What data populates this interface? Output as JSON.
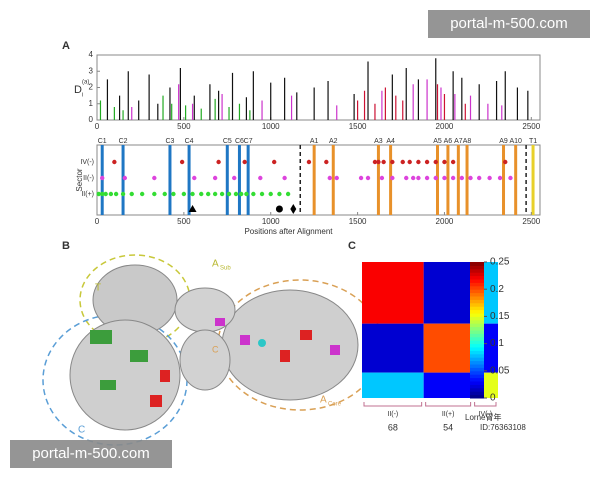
{
  "panel_labels": [
    "A",
    "B",
    "C"
  ],
  "watermarks": [
    "portal-m-500.com",
    "portal-m-500.com"
  ],
  "credit": [
    "Lorne胃年",
    "ID:76363108"
  ],
  "panel_b": {
    "labels": [
      "T",
      "C",
      "C"
    ],
    "a_sub": [
      "A",
      "Sub"
    ],
    "a_core": [
      "A",
      "Core"
    ]
  },
  "chart_data": [
    {
      "type": "spikes",
      "ylabel": "D",
      "ylabel_sup": "(a)",
      "ylabel_sub": "i",
      "xlim": [
        0,
        2550
      ],
      "ylim": [
        0,
        4
      ],
      "xticks": [
        0,
        500,
        1000,
        1500,
        2000,
        2500
      ],
      "yticks": [
        0,
        1,
        2,
        3,
        4
      ],
      "series": [
        {
          "color": "#111111",
          "x": [
            60,
            130,
            180,
            240,
            300,
            350,
            420,
            480,
            560,
            650,
            700,
            780,
            860,
            900,
            1000,
            1080,
            1150,
            1250,
            1330,
            1480,
            1560,
            1700,
            1780,
            1850,
            1950,
            2050,
            2100,
            2200,
            2300,
            2350,
            2420,
            2480
          ],
          "values": [
            2.5,
            1.5,
            3.0,
            1.2,
            2.8,
            1.0,
            2.0,
            3.2,
            1.5,
            2.2,
            1.8,
            2.9,
            1.4,
            3.0,
            2.3,
            2.6,
            1.7,
            2.0,
            2.4,
            1.6,
            3.6,
            2.8,
            3.2,
            2.5,
            3.8,
            3.0,
            2.6,
            2.2,
            2.4,
            3.0,
            2.0,
            1.8
          ]
        },
        {
          "color": "#22aa22",
          "x": [
            20,
            100,
            150,
            380,
            430,
            510,
            600,
            680,
            760,
            820,
            880
          ],
          "values": [
            1.2,
            0.8,
            0.6,
            1.5,
            1.0,
            0.9,
            0.7,
            1.3,
            0.8,
            1.0,
            0.6
          ]
        },
        {
          "color": "#cc33cc",
          "x": [
            200,
            470,
            550,
            720,
            950,
            1120,
            1380,
            1640,
            1820,
            1900,
            1980,
            2060,
            2150,
            2250,
            2330
          ],
          "values": [
            0.8,
            2.2,
            1.0,
            1.6,
            1.2,
            1.5,
            0.9,
            1.8,
            2.2,
            2.5,
            2.0,
            1.6,
            1.5,
            1.0,
            0.9
          ]
        },
        {
          "color": "#cc1133",
          "x": [
            1500,
            1540,
            1600,
            1660,
            1720,
            1760,
            1960,
            2000,
            2120
          ],
          "values": [
            1.2,
            1.8,
            1.0,
            2.0,
            1.5,
            1.2,
            2.2,
            1.6,
            1.0
          ]
        }
      ]
    },
    {
      "type": "sector",
      "ylabel": "Sector",
      "xlabel": "Positions after Alignment",
      "xlim": [
        0,
        2550
      ],
      "xticks": [
        0,
        500,
        1000,
        1500,
        2000,
        2500
      ],
      "categories": [
        "IV(-)",
        "II(-)",
        "II(+)"
      ],
      "series": [
        {
          "color": "#cc2222",
          "x": [
            100,
            490,
            700,
            850,
            1020,
            1220,
            1320,
            1600,
            1620,
            1650,
            1700,
            1760,
            1800,
            1850,
            1900,
            1950,
            2000,
            2050,
            2350
          ]
        },
        {
          "color": "#dd44dd",
          "x": [
            30,
            160,
            330,
            560,
            680,
            790,
            940,
            1080,
            1340,
            1380,
            1520,
            1560,
            1640,
            1700,
            1780,
            1820,
            1850,
            1900,
            1950,
            2000,
            2050,
            2100,
            2150,
            2200,
            2260,
            2320,
            2380
          ]
        },
        {
          "color": "#33dd33",
          "x": [
            10,
            30,
            50,
            80,
            110,
            150,
            200,
            260,
            330,
            390,
            440,
            500,
            550,
            600,
            640,
            680,
            720,
            760,
            800,
            830,
            860,
            900,
            950,
            1000,
            1050,
            1100
          ]
        }
      ],
      "lines": [
        {
          "label": "C1",
          "x": 30,
          "color": "#1f77c4"
        },
        {
          "label": "C2",
          "x": 150,
          "color": "#1f77c4"
        },
        {
          "label": "C3",
          "x": 420,
          "color": "#1f77c4"
        },
        {
          "label": "C4",
          "x": 530,
          "color": "#1f77c4"
        },
        {
          "label": "C5",
          "x": 750,
          "color": "#1f77c4"
        },
        {
          "label": "C6",
          "x": 820,
          "color": "#1f77c4"
        },
        {
          "label": "C7",
          "x": 870,
          "color": "#1f77c4"
        },
        {
          "label": "A1",
          "x": 1250,
          "color": "#e8912a"
        },
        {
          "label": "A2",
          "x": 1360,
          "color": "#e8912a"
        },
        {
          "label": "A3",
          "x": 1620,
          "color": "#e8912a"
        },
        {
          "label": "A4",
          "x": 1690,
          "color": "#e8912a"
        },
        {
          "label": "A5",
          "x": 1960,
          "color": "#e8912a"
        },
        {
          "label": "A6",
          "x": 2020,
          "color": "#e8912a"
        },
        {
          "label": "A7",
          "x": 2080,
          "color": "#e8912a"
        },
        {
          "label": "A8",
          "x": 2130,
          "color": "#e8912a"
        },
        {
          "label": "A9",
          "x": 2340,
          "color": "#e8912a"
        },
        {
          "label": "A10",
          "x": 2410,
          "color": "#e8912a"
        },
        {
          "label": "T1",
          "x": 2510,
          "color": "#e8d02a"
        }
      ],
      "dashed": [
        1170,
        2470
      ],
      "markers": [
        {
          "x": 550,
          "shape": "triangle"
        },
        {
          "x": 1050,
          "shape": "circle"
        },
        {
          "x": 1130,
          "shape": "diamond"
        }
      ]
    },
    {
      "type": "heatmap",
      "groups": [
        "II(-)",
        "II(+)",
        "IV(-)"
      ],
      "counts": [
        68,
        54,
        null
      ],
      "values": [
        [
          0.22,
          0.02,
          0.08
        ],
        [
          0.02,
          0.2,
          0.03
        ],
        [
          0.08,
          0.03,
          0.15
        ]
      ],
      "clim": [
        0,
        0.25
      ],
      "cticks": [
        0,
        0.05,
        0.1,
        0.15,
        0.2,
        0.25
      ]
    }
  ]
}
